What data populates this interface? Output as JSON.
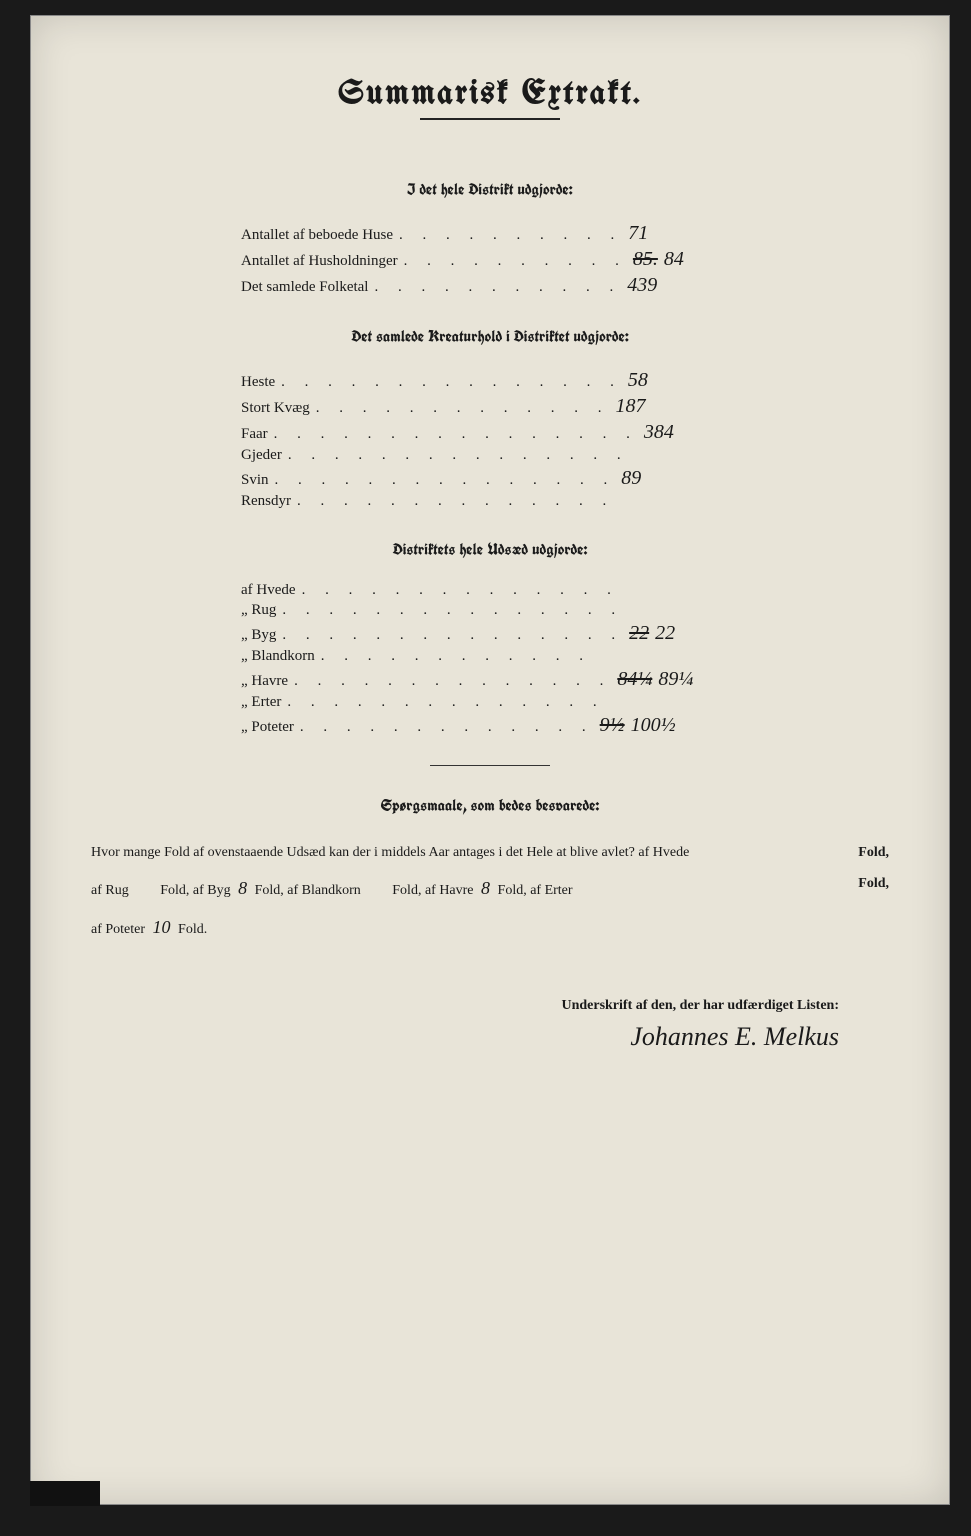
{
  "title": "Summarisk Extrakt.",
  "section1": {
    "heading": "I det hele Distrikt udgjorde:",
    "rows": [
      {
        "label": "Antallet af beboede Huse",
        "dots": ". . . . . . . . . .",
        "value": "71"
      },
      {
        "label": "Antallet af Husholdninger",
        "dots": ". . . . . . . . . .",
        "struck": "85.",
        "value": "84"
      },
      {
        "label": "Det samlede Folketal",
        "dots": ". . . . . . . . . . .",
        "value": "439"
      }
    ]
  },
  "section2": {
    "heading": "Det samlede Kreaturhold i Distriktet udgjorde:",
    "rows": [
      {
        "label": "Heste",
        "dots": ". . . . . . . . . . . . . . .",
        "value": "58"
      },
      {
        "label": "Stort Kvæg",
        "dots": ". . . . . . . . . . . . .",
        "value": "187"
      },
      {
        "label": "Faar",
        "dots": ". . . . . . . . . . . . . . . .",
        "value": "384"
      },
      {
        "label": "Gjeder",
        "dots": ". . . . . . . . . . . . . . .",
        "value": ""
      },
      {
        "label": "Svin",
        "dots": ". . . . . . . . . . . . . . .",
        "value": "89"
      },
      {
        "label": "Rensdyr",
        "dots": ". . . . . . . . . . . . . .",
        "value": ""
      }
    ]
  },
  "section3": {
    "heading": "Distriktets hele Udsæd udgjorde:",
    "rows": [
      {
        "label": "af Hvede",
        "dots": ". . . . . . . . . . . . . .",
        "value": ""
      },
      {
        "label": "„ Rug",
        "dots": ". . . . . . . . . . . . . . .",
        "value": ""
      },
      {
        "label": "„ Byg",
        "dots": ". . . . . . . . . . . . . . .",
        "struck": "22",
        "value": "22"
      },
      {
        "label": "„ Blandkorn",
        "dots": ". . . . . . . . . . . .",
        "value": ""
      },
      {
        "label": "„ Havre",
        "dots": ". . . . . . . . . . . . . .",
        "struck": "84¼",
        "value": "89¼"
      },
      {
        "label": "„ Erter",
        "dots": ". . . . . . . . . . . . . .",
        "value": ""
      },
      {
        "label": "„ Poteter",
        "dots": ". . . . . . . . . . . . .",
        "struck": "9½",
        "value": "100½"
      }
    ]
  },
  "questions": {
    "heading": "Spørgsmaale, som bedes besvarede:",
    "line1_a": "Hvor mange Fold af ovenstaaende Udsæd kan der i middels Aar antages i det Hele at blive avlet?  af Hvede",
    "fold1": "Fold,",
    "line2_a": "af Rug",
    "line2_b": "Fold, af Byg",
    "byg_val": "8",
    "line2_c": "Fold, af Blandkorn",
    "line2_d": "Fold, af Havre",
    "havre_val": "8",
    "line2_e": "Fold, af Erter",
    "fold2": "Fold,",
    "line3_a": "af Poteter",
    "poteter_val": "10",
    "line3_b": "Fold."
  },
  "signature": {
    "label": "Underskrift af den, der har udfærdiget Listen:",
    "name": "Johannes E. Melkus"
  },
  "colors": {
    "paper": "#e8e4d8",
    "ink": "#1a1a1a",
    "frame": "#1a1a1a"
  }
}
